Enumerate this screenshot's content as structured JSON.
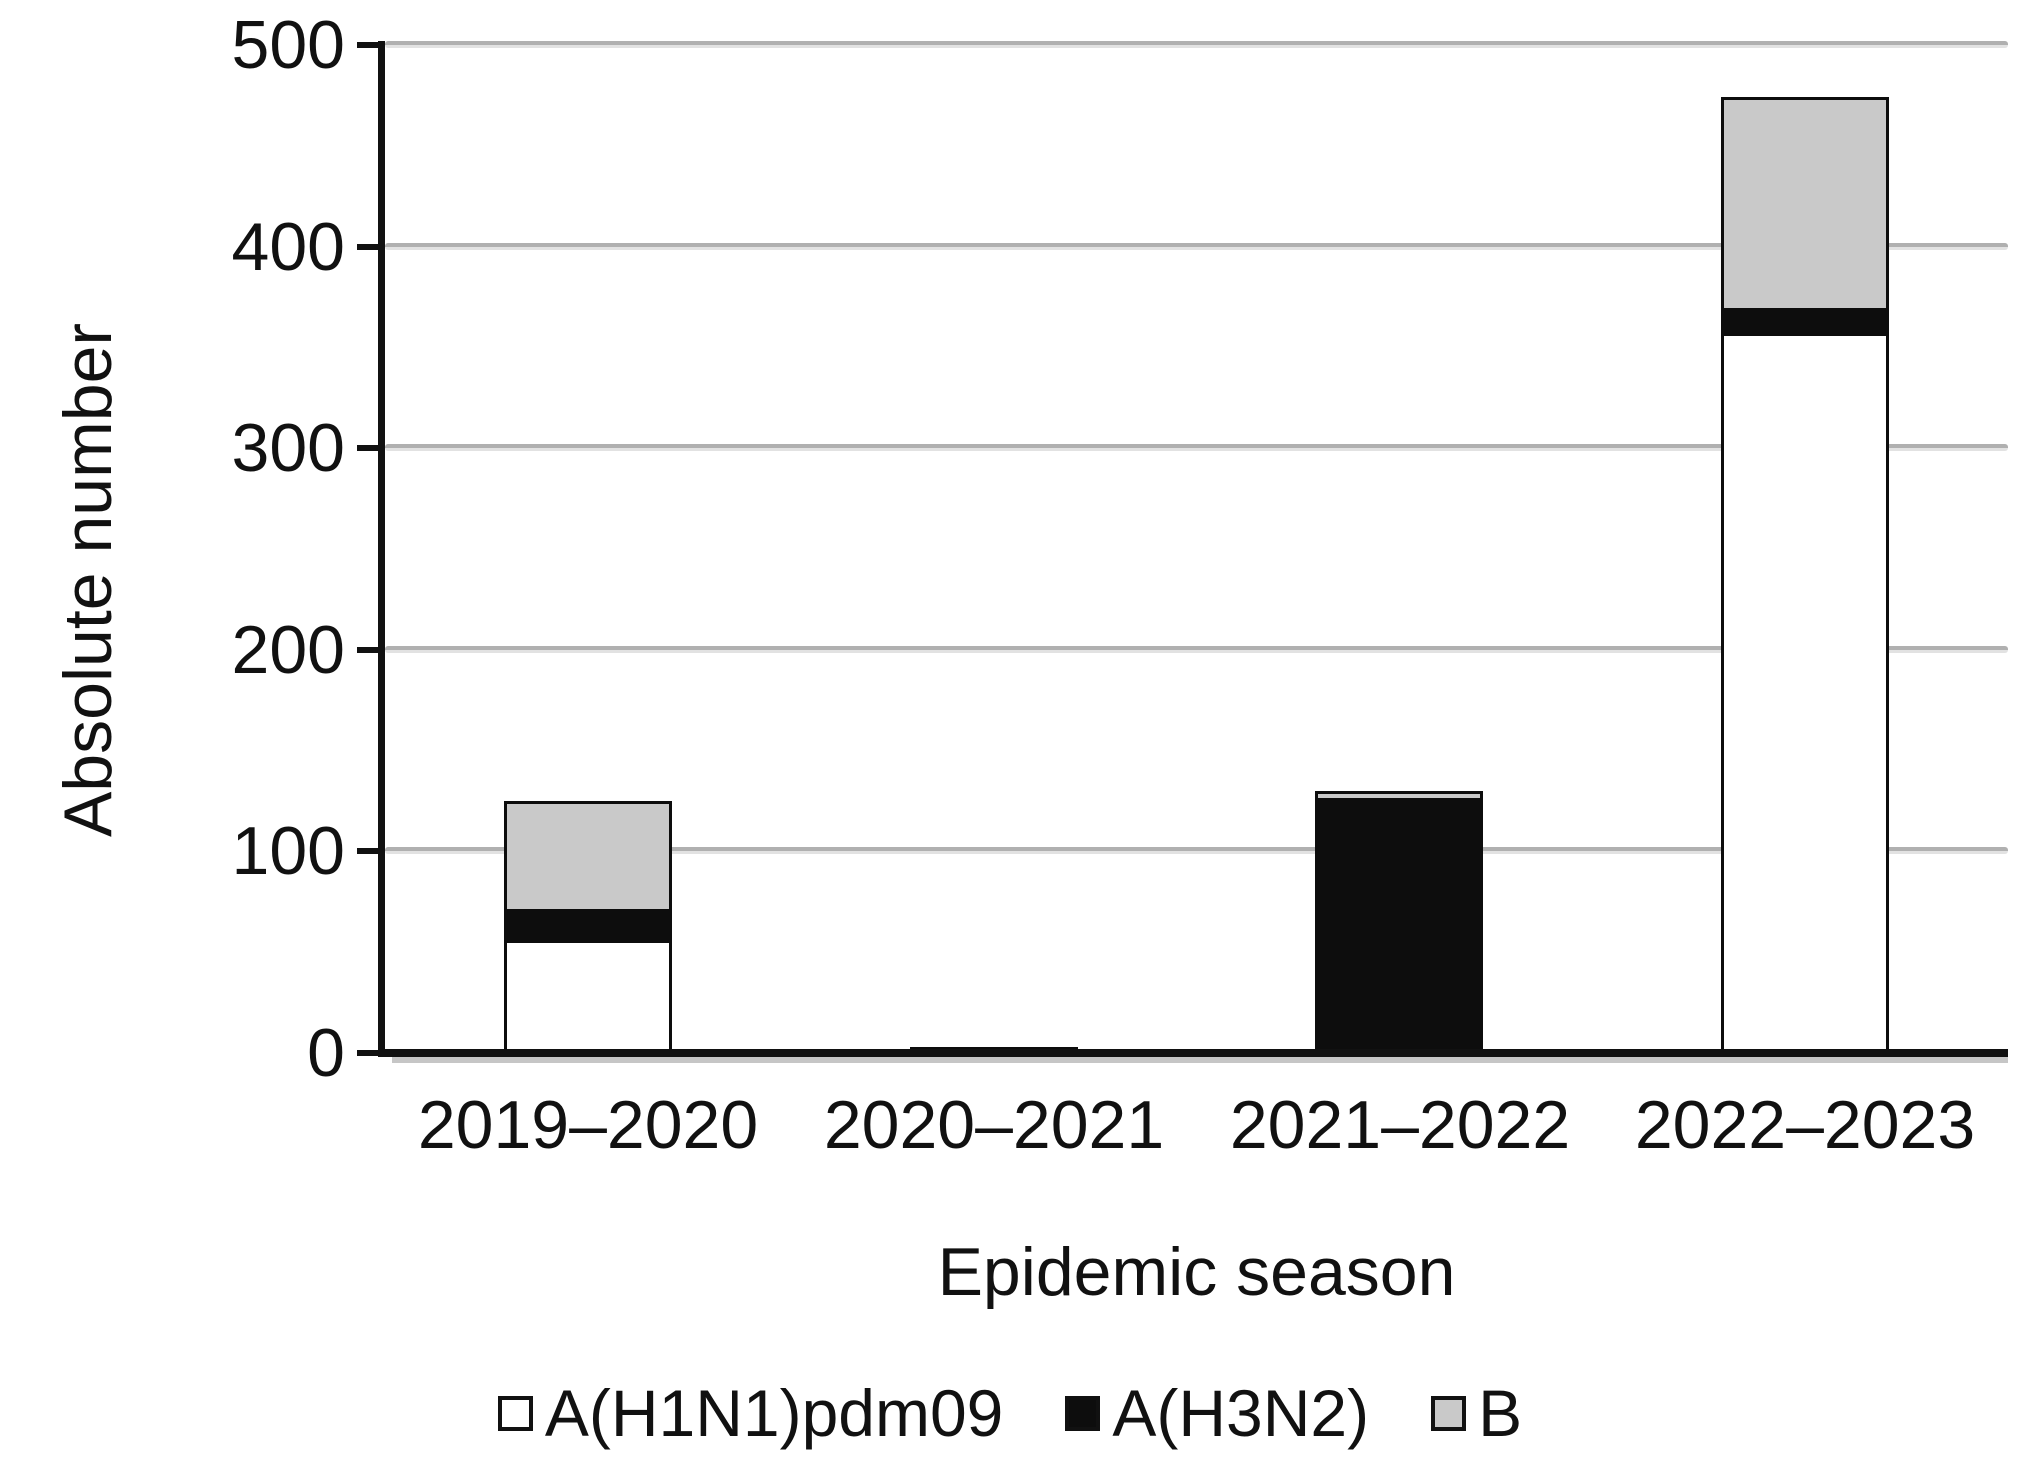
{
  "chart_data": {
    "type": "bar",
    "stacked": true,
    "title": "",
    "xlabel": "Epidemic season",
    "ylabel": "Absolute number",
    "categories": [
      "2019–2020",
      "2020–2021",
      "2021–2022",
      "2022–2023"
    ],
    "series": [
      {
        "name": "A(H1N1)pdm09",
        "color": "#ffffff",
        "values": [
          56,
          0,
          0,
          357
        ]
      },
      {
        "name": "A(H3N2)",
        "color": "#0d0d0d",
        "values": [
          14,
          3,
          125,
          11
        ]
      },
      {
        "name": "B",
        "color": "#c9c9c9",
        "values": [
          55,
          0,
          5,
          106
        ]
      }
    ],
    "totals": [
      125,
      3,
      130,
      474
    ],
    "ylim": [
      0,
      500
    ],
    "ytick_step": 100,
    "yticks": [
      "0",
      "100",
      "200",
      "300",
      "400",
      "500"
    ],
    "grid": "horizontal",
    "legend_position": "bottom",
    "colors": {
      "axis": "#111111",
      "gridline": "#b0b0b0",
      "gridline_shadow": "#e2e2e2",
      "text": "#111111",
      "background": "#ffffff"
    }
  }
}
